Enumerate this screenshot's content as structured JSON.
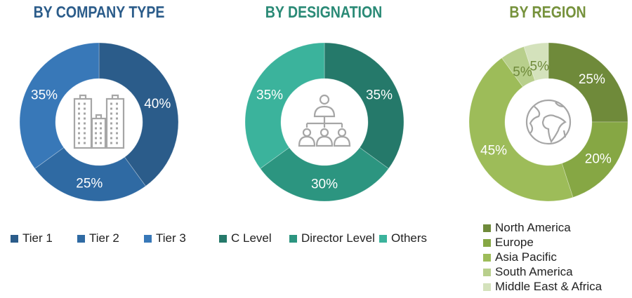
{
  "chart_data": [
    {
      "type": "pie",
      "title": "BY COMPANY TYPE",
      "title_color": "#2b5c8a",
      "categories": [
        "Tier 1",
        "Tier 2",
        "Tier 3"
      ],
      "values": [
        40,
        25,
        35
      ],
      "labels": [
        "40%",
        "25%",
        "35%"
      ],
      "colors": [
        "#2b5c8a",
        "#2f6aa3",
        "#3878b8"
      ],
      "label_colors": [
        "#fff",
        "#fff",
        "#fff"
      ],
      "center_icon": "buildings-icon",
      "legend": "bottom"
    },
    {
      "type": "pie",
      "title": "BY DESIGNATION",
      "title_color": "#2a8a76",
      "categories": [
        "C Level",
        "Director Level",
        "Others"
      ],
      "values": [
        35,
        30,
        35
      ],
      "labels": [
        "35%",
        "30%",
        "35%"
      ],
      "colors": [
        "#25796a",
        "#2c9580",
        "#3bb39c"
      ],
      "label_colors": [
        "#fff",
        "#fff",
        "#fff"
      ],
      "center_icon": "org-chart-icon",
      "legend": "bottom"
    },
    {
      "type": "pie",
      "title": "BY REGION",
      "title_color": "#76923c",
      "categories": [
        "North America",
        "Europe",
        "Asia Pacific",
        "South America",
        "Middle East & Africa"
      ],
      "values": [
        25,
        20,
        45,
        5,
        5
      ],
      "labels": [
        "25%",
        "20%",
        "45%",
        "5%",
        "5%"
      ],
      "colors": [
        "#6f8a3a",
        "#86a744",
        "#9dbc59",
        "#b8cf8c",
        "#d4e2bc"
      ],
      "label_colors": [
        "#fff",
        "#fff",
        "#fff",
        "#6f8a3a",
        "#6f8a3a"
      ],
      "center_icon": "globe-icon",
      "legend": "bottom-right"
    }
  ]
}
